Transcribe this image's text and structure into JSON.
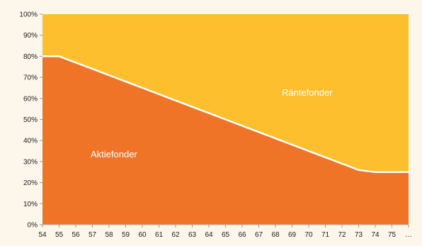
{
  "chart_data": {
    "type": "area",
    "stacked": true,
    "normalized_percent": true,
    "title": "",
    "xlabel": "",
    "ylabel": "",
    "ylim": [
      0,
      100
    ],
    "yticks": [
      "0%",
      "10%",
      "20%",
      "30%",
      "40%",
      "50%",
      "60%",
      "70%",
      "80%",
      "90%",
      "100%"
    ],
    "x": [
      54,
      55,
      56,
      57,
      58,
      59,
      60,
      61,
      62,
      63,
      64,
      65,
      66,
      67,
      68,
      69,
      70,
      71,
      72,
      73,
      74,
      75,
      76
    ],
    "xticks": [
      "54",
      "55",
      "56",
      "57",
      "58",
      "59",
      "60",
      "61",
      "62",
      "63",
      "64",
      "65",
      "66",
      "67",
      "68",
      "69",
      "70",
      "71",
      "72",
      "73",
      "74",
      "75",
      "…"
    ],
    "grid": false,
    "legend": "none",
    "series": [
      {
        "name": "Aktiefonder",
        "color": "#f07428",
        "values": [
          80,
          80,
          77,
          74,
          71,
          68,
          65,
          62,
          59,
          56,
          53,
          50,
          47,
          44,
          41,
          38,
          35,
          32,
          29,
          26,
          25,
          25,
          25
        ]
      },
      {
        "name": "Räntefonder",
        "color": "#fdbf2d",
        "values": [
          20,
          20,
          23,
          26,
          29,
          32,
          35,
          38,
          41,
          44,
          47,
          50,
          53,
          56,
          59,
          62,
          65,
          68,
          71,
          74,
          75,
          75,
          75
        ]
      }
    ]
  }
}
